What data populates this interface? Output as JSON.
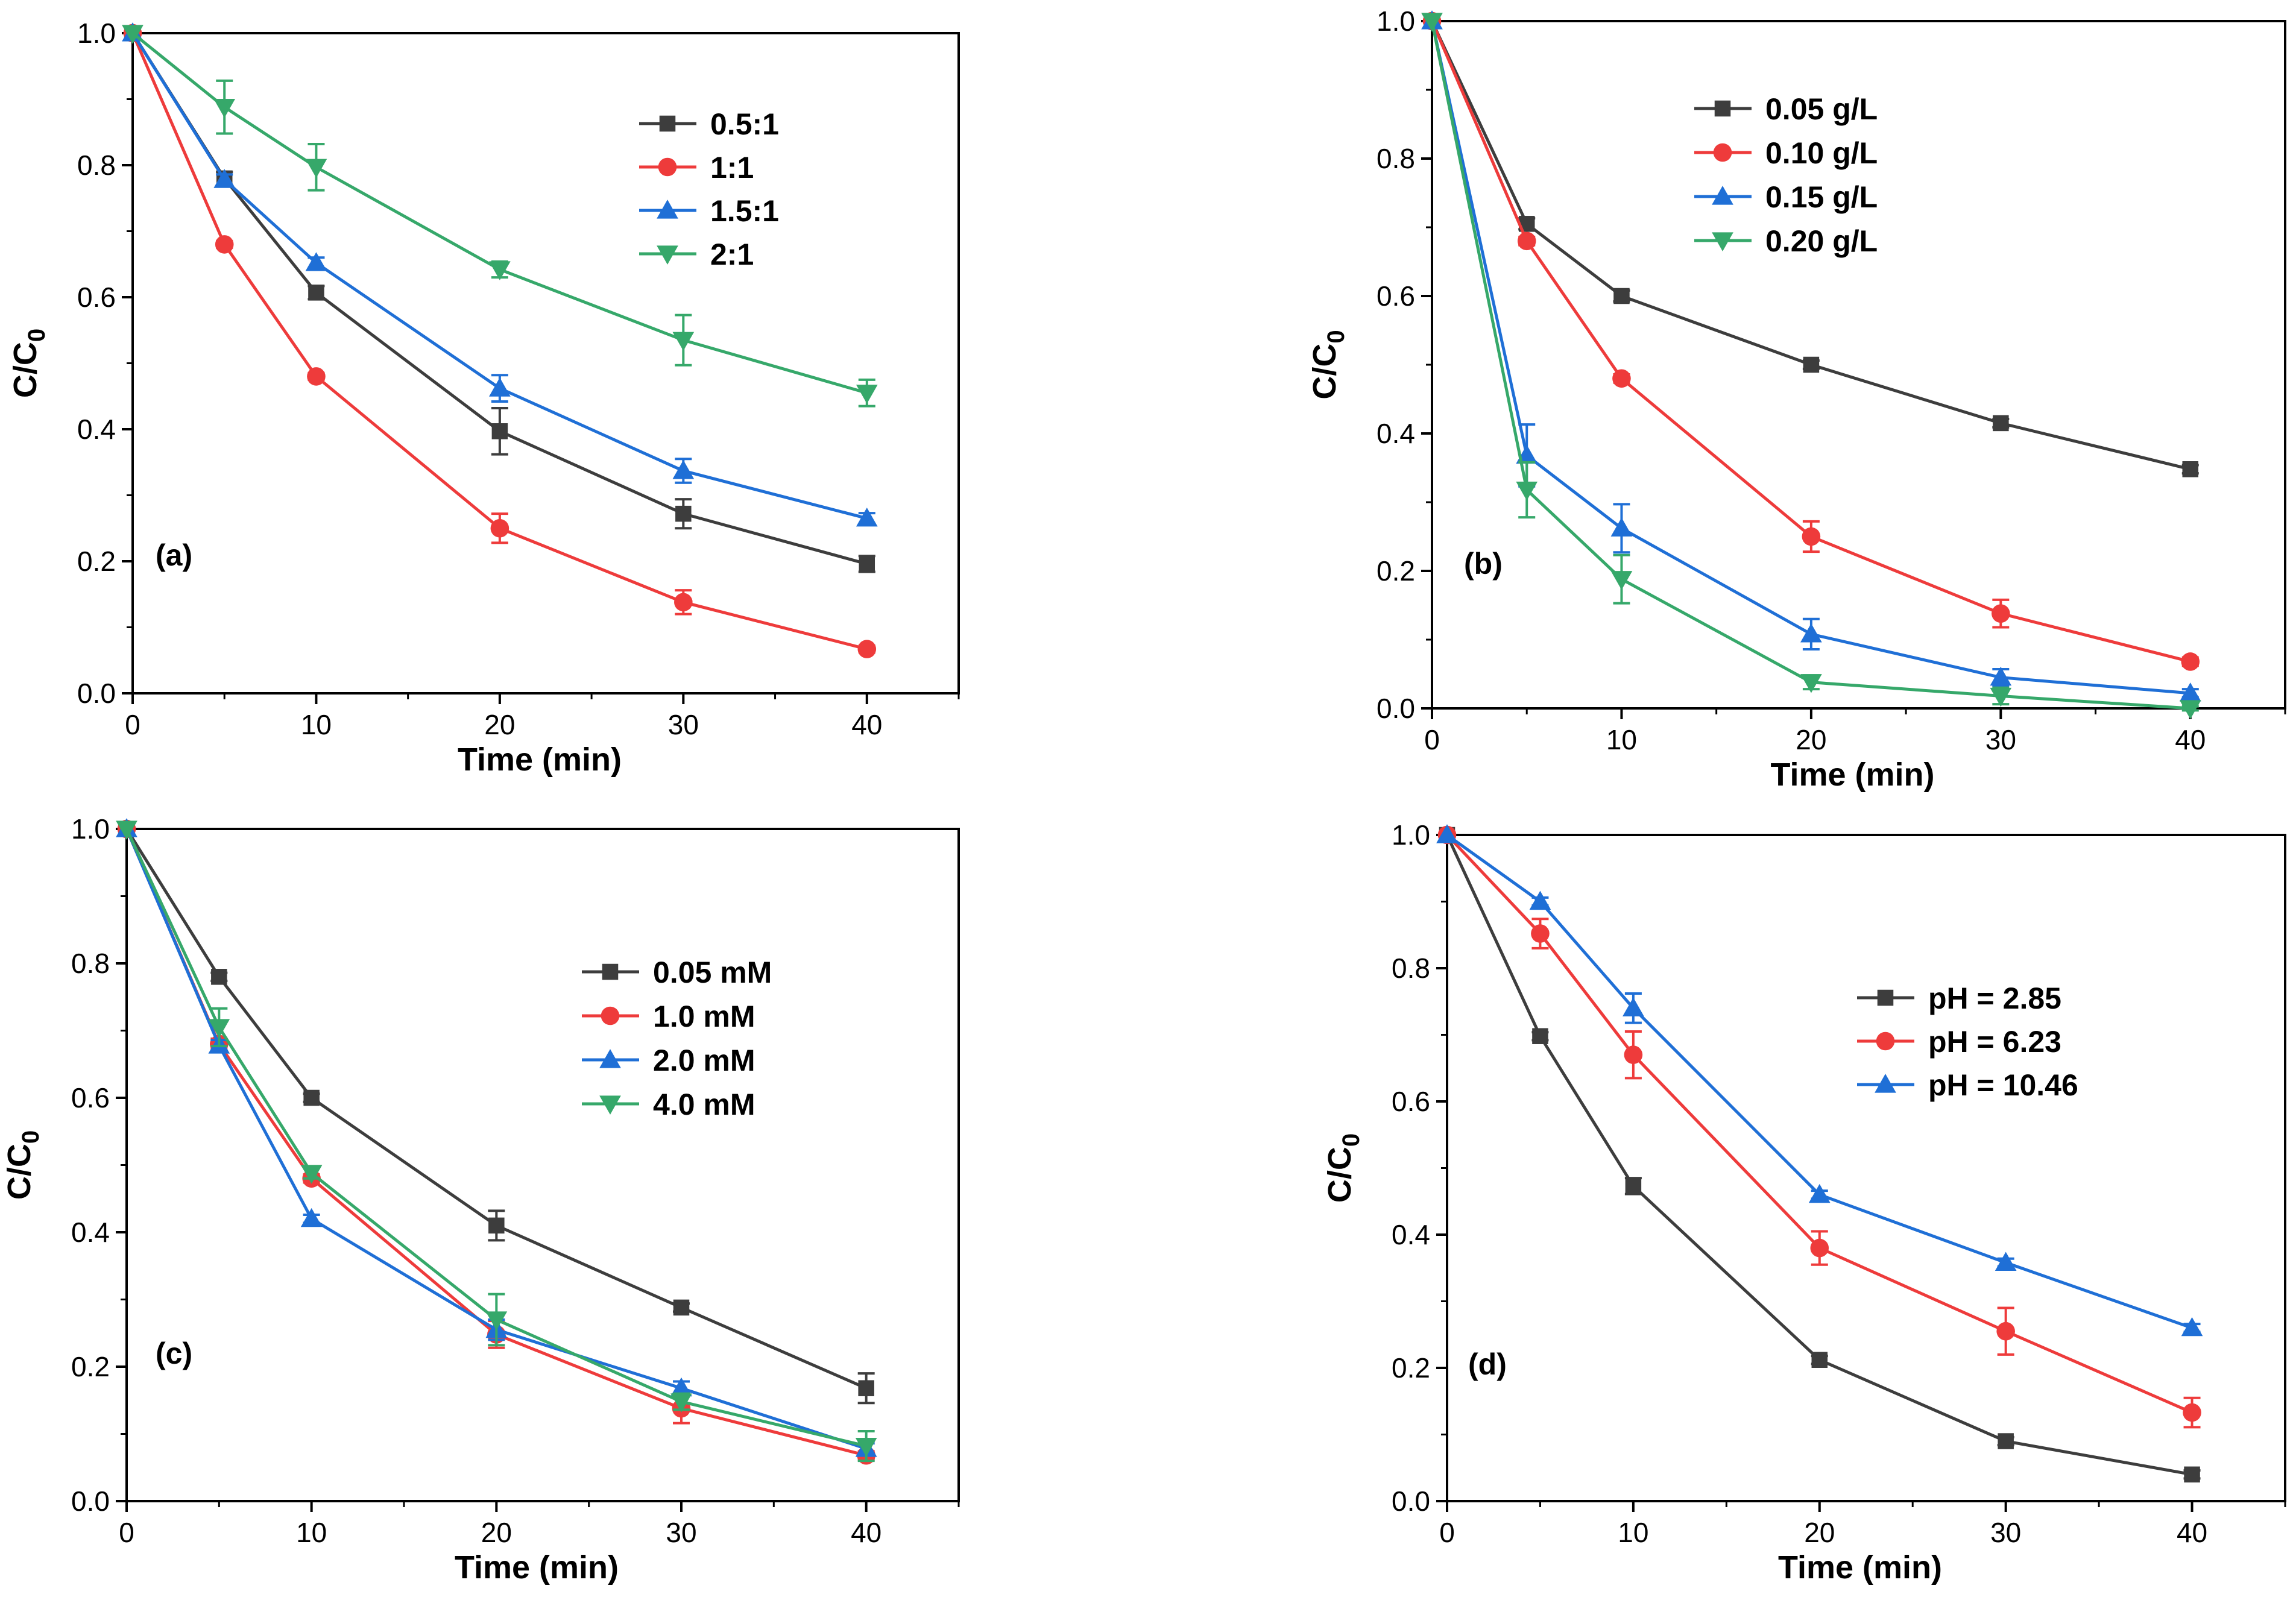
{
  "colors": {
    "black": "#3d3d3d",
    "red": "#ee3b3b",
    "blue": "#1f6fd6",
    "green": "#36a86a"
  },
  "chart_data": [
    {
      "type": "line",
      "panel_label": "(a)",
      "xlabel": "Time (min)",
      "ylabel": "C/C0",
      "xlim": [
        0,
        45
      ],
      "ylim": [
        0,
        1.0
      ],
      "xticks": [
        "0",
        "10",
        "20",
        "30",
        "40"
      ],
      "yticks": [
        "0.0",
        "0.2",
        "0.4",
        "0.6",
        "0.8",
        "1.0"
      ],
      "legend_position": "top-right",
      "x": [
        0,
        5,
        10,
        20,
        30,
        40
      ],
      "series": [
        {
          "name": "0.5:1",
          "color": "black",
          "marker": "square",
          "values": [
            1.0,
            0.78,
            0.607,
            0.397,
            0.272,
            0.196
          ],
          "errors": [
            0,
            0.01,
            0.01,
            0.035,
            0.022,
            0.012
          ]
        },
        {
          "name": "1:1",
          "color": "red",
          "marker": "circle",
          "values": [
            1.0,
            0.68,
            0.48,
            0.25,
            0.138,
            0.067
          ],
          "errors": [
            0,
            0.005,
            0.005,
            0.022,
            0.018,
            0.005
          ]
        },
        {
          "name": "1.5:1",
          "color": "blue",
          "marker": "triangle-up",
          "values": [
            1.0,
            0.778,
            0.652,
            0.462,
            0.337,
            0.265
          ],
          "errors": [
            0,
            0.008,
            0.008,
            0.02,
            0.018,
            0.008
          ]
        },
        {
          "name": "2:1",
          "color": "green",
          "marker": "triangle-down",
          "values": [
            1.0,
            0.888,
            0.797,
            0.642,
            0.535,
            0.455
          ],
          "errors": [
            0,
            0.04,
            0.035,
            0.012,
            0.038,
            0.02
          ]
        }
      ]
    },
    {
      "type": "line",
      "panel_label": "(b)",
      "xlabel": "Time (min)",
      "ylabel": "C/C0",
      "xlim": [
        0,
        45
      ],
      "ylim": [
        0,
        1.0
      ],
      "xticks": [
        "0",
        "10",
        "20",
        "30",
        "40"
      ],
      "yticks": [
        "0.0",
        "0.2",
        "0.4",
        "0.6",
        "0.8",
        "1.0"
      ],
      "legend_position": "top-center",
      "x": [
        0,
        5,
        10,
        20,
        30,
        40
      ],
      "series": [
        {
          "name": "0.05 g/L",
          "color": "black",
          "marker": "square",
          "values": [
            1.0,
            0.705,
            0.6,
            0.5,
            0.415,
            0.348
          ],
          "errors": [
            0,
            0.008,
            0.008,
            0.006,
            0.006,
            0.006
          ]
        },
        {
          "name": "0.10 g/L",
          "color": "red",
          "marker": "circle",
          "values": [
            1.0,
            0.68,
            0.48,
            0.25,
            0.138,
            0.068
          ],
          "errors": [
            0,
            0.006,
            0.006,
            0.022,
            0.02,
            0.006
          ]
        },
        {
          "name": "0.15 g/L",
          "color": "blue",
          "marker": "triangle-up",
          "values": [
            1.0,
            0.368,
            0.262,
            0.108,
            0.045,
            0.022
          ],
          "errors": [
            0,
            0.045,
            0.035,
            0.022,
            0.012,
            0.006
          ]
        },
        {
          "name": "0.20 g/L",
          "color": "green",
          "marker": "triangle-down",
          "values": [
            1.0,
            0.318,
            0.188,
            0.038,
            0.018,
            0.0
          ],
          "errors": [
            0,
            0.04,
            0.035,
            0.01,
            0.012,
            0.003
          ]
        }
      ]
    },
    {
      "type": "line",
      "panel_label": "(c)",
      "xlabel": "Time (min)",
      "ylabel": "C/C0",
      "xlim": [
        0,
        45
      ],
      "ylim": [
        0,
        1.0
      ],
      "xticks": [
        "0",
        "10",
        "20",
        "30",
        "40"
      ],
      "yticks": [
        "0.0",
        "0.2",
        "0.4",
        "0.6",
        "0.8",
        "1.0"
      ],
      "legend_position": "center-right",
      "x": [
        0,
        5,
        10,
        20,
        30,
        40
      ],
      "series": [
        {
          "name": "0.05 mM",
          "color": "black",
          "marker": "square",
          "values": [
            1.0,
            0.78,
            0.6,
            0.41,
            0.288,
            0.168
          ],
          "errors": [
            0,
            0.006,
            0.006,
            0.022,
            0.006,
            0.022
          ]
        },
        {
          "name": "1.0 mM",
          "color": "red",
          "marker": "circle",
          "values": [
            1.0,
            0.68,
            0.48,
            0.248,
            0.138,
            0.068
          ],
          "errors": [
            0,
            0.008,
            0.006,
            0.02,
            0.022,
            0.006
          ]
        },
        {
          "name": "2.0 mM",
          "color": "blue",
          "marker": "triangle-up",
          "values": [
            1.0,
            0.678,
            0.42,
            0.255,
            0.168,
            0.078
          ],
          "errors": [
            0,
            0.008,
            0.006,
            0.015,
            0.01,
            0.008
          ]
        },
        {
          "name": "4.0 mM",
          "color": "green",
          "marker": "triangle-down",
          "values": [
            1.0,
            0.705,
            0.488,
            0.27,
            0.148,
            0.082
          ],
          "errors": [
            0,
            0.028,
            0.008,
            0.038,
            0.012,
            0.022
          ]
        }
      ]
    },
    {
      "type": "line",
      "panel_label": "(d)",
      "xlabel": "Time (min)",
      "ylabel": "C/C0",
      "xlim": [
        0,
        45
      ],
      "ylim": [
        0,
        1.0
      ],
      "xticks": [
        "0",
        "10",
        "20",
        "30",
        "40"
      ],
      "yticks": [
        "0.0",
        "0.2",
        "0.4",
        "0.6",
        "0.8",
        "1.0"
      ],
      "legend_position": "center-right",
      "x": [
        0,
        5,
        10,
        20,
        30,
        40
      ],
      "series": [
        {
          "name": "pH = 2.85",
          "color": "black",
          "marker": "square",
          "values": [
            1.0,
            0.698,
            0.473,
            0.212,
            0.09,
            0.04
          ],
          "errors": [
            0,
            0.006,
            0.012,
            0.006,
            0.006,
            0.006
          ]
        },
        {
          "name": "pH = 6.23",
          "color": "red",
          "marker": "circle",
          "values": [
            1.0,
            0.852,
            0.67,
            0.38,
            0.255,
            0.133
          ],
          "errors": [
            0,
            0.022,
            0.035,
            0.025,
            0.035,
            0.022
          ]
        },
        {
          "name": "pH = 10.46",
          "color": "blue",
          "marker": "triangle-up",
          "values": [
            1.0,
            0.9,
            0.74,
            0.46,
            0.358,
            0.26
          ],
          "errors": [
            0,
            0.006,
            0.022,
            0.006,
            0.006,
            0.006
          ]
        }
      ]
    }
  ]
}
